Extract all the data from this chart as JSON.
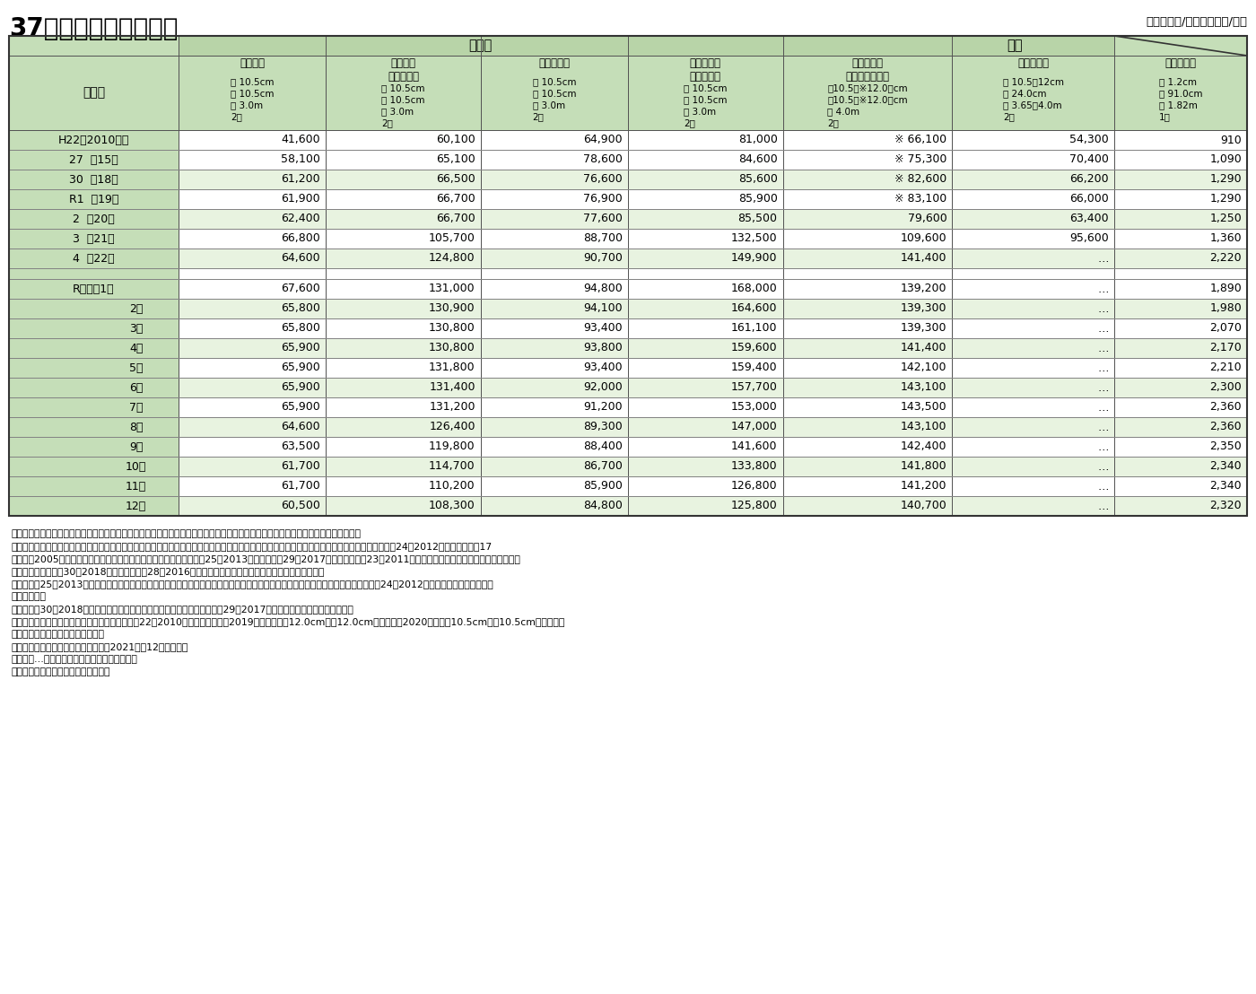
{
  "title": "37　近年の製材品価格",
  "unit_note": "（単位：円/㎥、合板は円/枚）",
  "bg_color": "#ffffff",
  "header_bg": "#c5deb8",
  "row_bg_light": "#e8f3e0",
  "row_bg_white": "#ffffff",
  "border_color": "#000000",
  "col_groups": [
    {
      "label": "国産材",
      "span": 4,
      "bg": "#b8d4a8"
    },
    {
      "label": "米材",
      "span": 3,
      "bg": "#b8d4a8"
    }
  ],
  "col_headers": [
    {
      "name": "スギ正角",
      "sub": "",
      "spec": "厚 10.5cm\n幅 10.5cm\n長 3.0m\n2級"
    },
    {
      "name": "スギ正角\n（乾燥材）",
      "sub": "",
      "spec": "厚 10.5cm\n幅 10.5cm\n長 3.0m\n2級"
    },
    {
      "name": "ヒノキ正角",
      "sub": "",
      "spec": "厚 10.5cm\n幅 10.5cm\n長 3.0m\n2級"
    },
    {
      "name": "ヒノキ正角\n（乾燥材）",
      "sub": "",
      "spec": "厚 10.5cm\n幅 10.5cm\n長 3.0m\n2級"
    },
    {
      "name": "米ツガ正角\n（防腐処理材）",
      "sub": "",
      "spec": "厚10.5（※12.0）cm\n幅10.5（※12.0）cm\n長 4.0m\n2級"
    },
    {
      "name": "米マツ平角",
      "sub": "",
      "spec": "厚 10.5～12cm\n幅 24.0cm\n長 3.65～4.0m\n2級"
    },
    {
      "name": "針葉樹合板",
      "sub": "",
      "spec": "厚 1.2cm\n幅 91.0cm\n長 1.82m\n1類"
    }
  ],
  "rows": [
    {
      "label": "H22（2010）年",
      "label2": "",
      "values": [
        "41,600",
        "60,100",
        "64,900",
        "81,000",
        "※ 66,100",
        "54,300",
        "910"
      ],
      "alt": false,
      "spacer": false
    },
    {
      "label": "27",
      "label2": "（15）",
      "values": [
        "58,100",
        "65,100",
        "78,600",
        "84,600",
        "※ 75,300",
        "70,400",
        "1,090"
      ],
      "alt": false,
      "spacer": false
    },
    {
      "label": "30",
      "label2": "（18）",
      "values": [
        "61,200",
        "66,500",
        "76,600",
        "85,600",
        "※ 82,600",
        "66,200",
        "1,290"
      ],
      "alt": true,
      "spacer": false
    },
    {
      "label": "R1",
      "label2": "（19）",
      "values": [
        "61,900",
        "66,700",
        "76,900",
        "85,900",
        "※ 83,100",
        "66,000",
        "1,290"
      ],
      "alt": false,
      "spacer": false
    },
    {
      "label": "2",
      "label2": "（20）",
      "values": [
        "62,400",
        "66,700",
        "77,600",
        "85,500",
        "79,600",
        "63,400",
        "1,250"
      ],
      "alt": true,
      "spacer": false
    },
    {
      "label": "3",
      "label2": "（21）",
      "values": [
        "66,800",
        "105,700",
        "88,700",
        "132,500",
        "109,600",
        "95,600",
        "1,360"
      ],
      "alt": false,
      "spacer": false
    },
    {
      "label": "4",
      "label2": "（22）",
      "values": [
        "64,600",
        "124,800",
        "90,700",
        "149,900",
        "141,400",
        "…",
        "2,220"
      ],
      "alt": true,
      "spacer": false
    },
    {
      "label": "",
      "label2": "",
      "values": [
        "",
        "",
        "",
        "",
        "",
        "",
        ""
      ],
      "alt": false,
      "spacer": true
    },
    {
      "label": "R４年　1月",
      "label2": "",
      "values": [
        "67,600",
        "131,000",
        "94,800",
        "168,000",
        "139,200",
        "…",
        "1,890"
      ],
      "alt": false,
      "spacer": false
    },
    {
      "label": "2月",
      "label2": "",
      "values": [
        "65,800",
        "130,900",
        "94,100",
        "164,600",
        "139,300",
        "…",
        "1,980"
      ],
      "alt": true,
      "spacer": false
    },
    {
      "label": "3月",
      "label2": "",
      "values": [
        "65,800",
        "130,800",
        "93,400",
        "161,100",
        "139,300",
        "…",
        "2,070"
      ],
      "alt": false,
      "spacer": false
    },
    {
      "label": "4月",
      "label2": "",
      "values": [
        "65,900",
        "130,800",
        "93,800",
        "159,600",
        "141,400",
        "…",
        "2,170"
      ],
      "alt": true,
      "spacer": false
    },
    {
      "label": "5月",
      "label2": "",
      "values": [
        "65,900",
        "131,800",
        "93,400",
        "159,400",
        "142,100",
        "…",
        "2,210"
      ],
      "alt": false,
      "spacer": false
    },
    {
      "label": "6月",
      "label2": "",
      "values": [
        "65,900",
        "131,400",
        "92,000",
        "157,700",
        "143,100",
        "…",
        "2,300"
      ],
      "alt": true,
      "spacer": false
    },
    {
      "label": "7月",
      "label2": "",
      "values": [
        "65,900",
        "131,200",
        "91,200",
        "153,000",
        "143,500",
        "…",
        "2,360"
      ],
      "alt": false,
      "spacer": false
    },
    {
      "label": "8月",
      "label2": "",
      "values": [
        "64,600",
        "126,400",
        "89,300",
        "147,000",
        "143,100",
        "…",
        "2,360"
      ],
      "alt": true,
      "spacer": false
    },
    {
      "label": "9月",
      "label2": "",
      "values": [
        "63,500",
        "119,800",
        "88,400",
        "141,600",
        "142,400",
        "…",
        "2,350"
      ],
      "alt": false,
      "spacer": false
    },
    {
      "label": "10月",
      "label2": "",
      "values": [
        "61,700",
        "114,700",
        "86,700",
        "133,800",
        "141,800",
        "…",
        "2,340"
      ],
      "alt": true,
      "spacer": false
    },
    {
      "label": "11月",
      "label2": "",
      "values": [
        "61,700",
        "110,200",
        "85,900",
        "126,800",
        "141,200",
        "…",
        "2,340"
      ],
      "alt": false,
      "spacer": false
    },
    {
      "label": "12月",
      "label2": "",
      "values": [
        "60,500",
        "108,300",
        "84,800",
        "125,800",
        "140,700",
        "…",
        "2,320"
      ],
      "alt": true,
      "spacer": false
    }
  ],
  "footnotes": [
    "注１：価格は、木材市売市場にあってはせり又は入札による取引価格、木材センター及び木材販売業者にあっては店頭渡し販売価格。",
    "　２：スギ正角、スギ正角（乾燥材）、ヒノキ正角、ヒノキ正角（乾燥材）、米ツガ正角（防腐処理材）、米マツ平角、針葉樹合板のいずれも平成24（2012）年までは平成17",
    "　　　（2005）年における年間の推定販売量による加重平均値、平成25（2013）年から平成29（2017）年までは平成23（2011）年における年間の推定販売量による加重",
    "　　　平均値、平成30（2018）年からは平成28（2016）年における年間の推定販売量による加重平均値。",
    "　３：平成25（2013）年から調査対象等の見直しを行ったことから、スギ正角（乾燥材）、ヒノキ正角、針葉樹合板のデータは、平成24（2012）年以前のデータと連続し",
    "　　　ない。",
    "　４：平成30（2018）年から調査対象等の見直しを行ったことから、平成29（2017）年以前のデータと連続しない。",
    "　５：米ツガ正角（防腐処理材）の価格は、平成22（2010）年から令和元（2019）年までは厚12.0cm、幅12.0cm、令和２（2020）年は厚10.5cm、幅10.5cmの規格のも",
    "　　　のであるため、連続しない。",
    "　６：米マツ平角の調査は、令和３（2021）年12月で終了。",
    "　７：「…」は事実不詳又は調査を欠くもの。",
    "資料：農林水産省「木材需給報告書」"
  ]
}
